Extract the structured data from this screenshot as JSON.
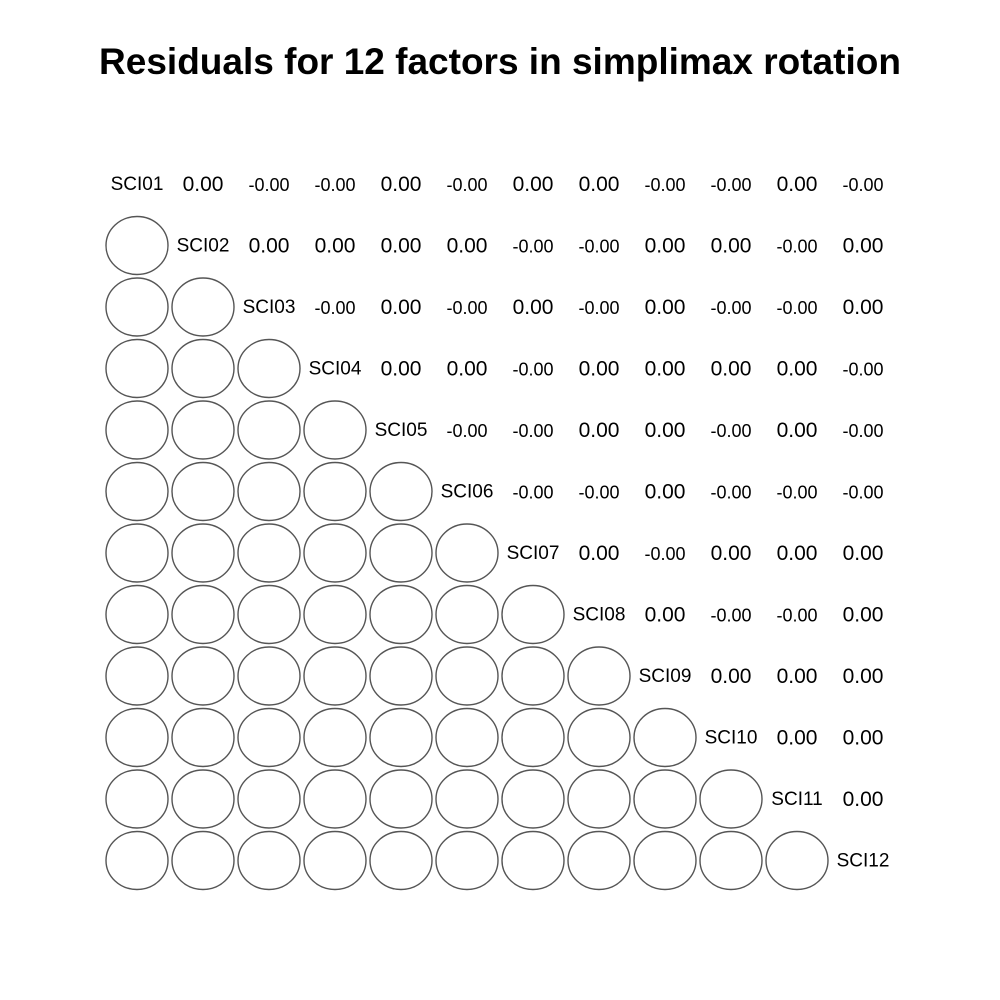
{
  "chart_data": {
    "type": "heatmap",
    "title": "Residuals for 12 factors in simplimax rotation",
    "variables": [
      "SCI01",
      "SCI02",
      "SCI03",
      "SCI04",
      "SCI05",
      "SCI06",
      "SCI07",
      "SCI08",
      "SCI09",
      "SCI10",
      "SCI11",
      "SCI12"
    ],
    "upper_values": [
      [
        "0.00",
        "-0.00",
        "-0.00",
        "0.00",
        "-0.00",
        "0.00",
        "0.00",
        "-0.00",
        "-0.00",
        "0.00",
        "-0.00"
      ],
      [
        "0.00",
        "0.00",
        "0.00",
        "0.00",
        "-0.00",
        "-0.00",
        "0.00",
        "0.00",
        "-0.00",
        "0.00"
      ],
      [
        "-0.00",
        "0.00",
        "-0.00",
        "0.00",
        "-0.00",
        "0.00",
        "-0.00",
        "-0.00",
        "0.00"
      ],
      [
        "0.00",
        "0.00",
        "-0.00",
        "0.00",
        "0.00",
        "0.00",
        "0.00",
        "-0.00"
      ],
      [
        "-0.00",
        "-0.00",
        "0.00",
        "0.00",
        "-0.00",
        "0.00",
        "-0.00"
      ],
      [
        "-0.00",
        "-0.00",
        "0.00",
        "-0.00",
        "-0.00",
        "-0.00"
      ],
      [
        "0.00",
        "-0.00",
        "0.00",
        "0.00",
        "0.00"
      ],
      [
        "0.00",
        "-0.00",
        "-0.00",
        "0.00"
      ],
      [
        "0.00",
        "0.00",
        "0.00"
      ],
      [
        "0.00",
        "0.00"
      ],
      [
        "0.00"
      ]
    ],
    "lower_display": "circles",
    "colors": {
      "circle_stroke": "#555555",
      "circle_fill": "#ffffff",
      "text": "#000000"
    }
  }
}
